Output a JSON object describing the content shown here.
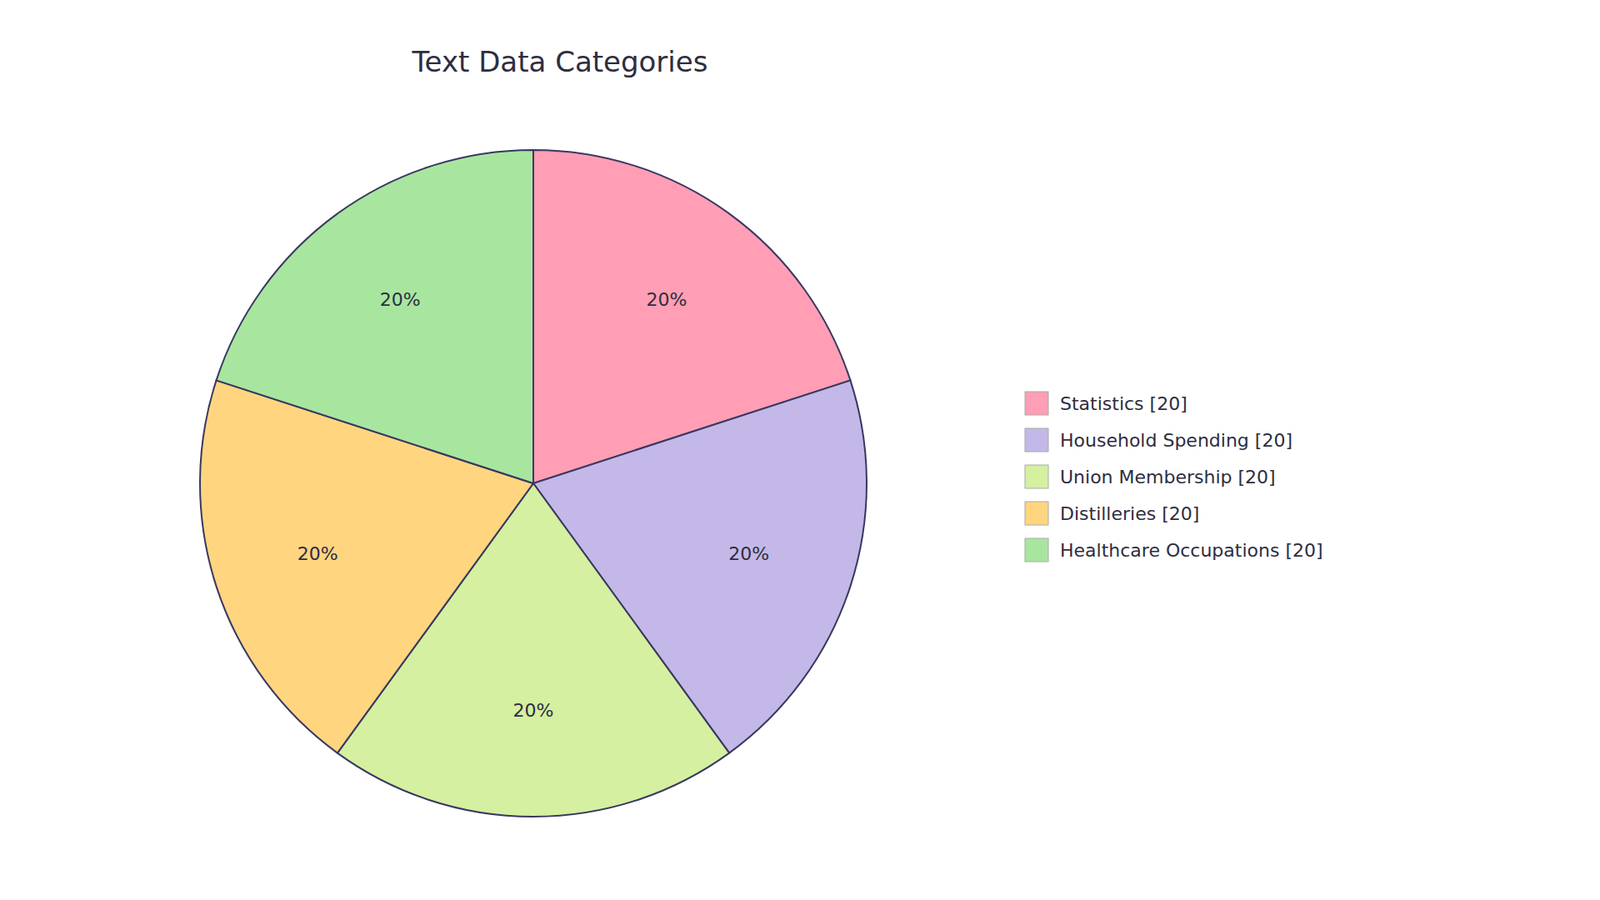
{
  "chart_data": {
    "type": "pie",
    "title": "Text Data Categories",
    "categories": [
      "Statistics [20]",
      "Household Spending [20]",
      "Union Membership [20]",
      "Distilleries [20]",
      "Healthcare Occupations [20]"
    ],
    "values": [
      20,
      20,
      20,
      20,
      20
    ],
    "value_labels": [
      "20%",
      "20%",
      "20%",
      "20%",
      "20%"
    ],
    "colors": [
      "#FF9EB5",
      "#C4B8E8",
      "#D4F0A0",
      "#FFD580",
      "#A8E6A0"
    ],
    "data_labels": true,
    "legend": "right"
  }
}
